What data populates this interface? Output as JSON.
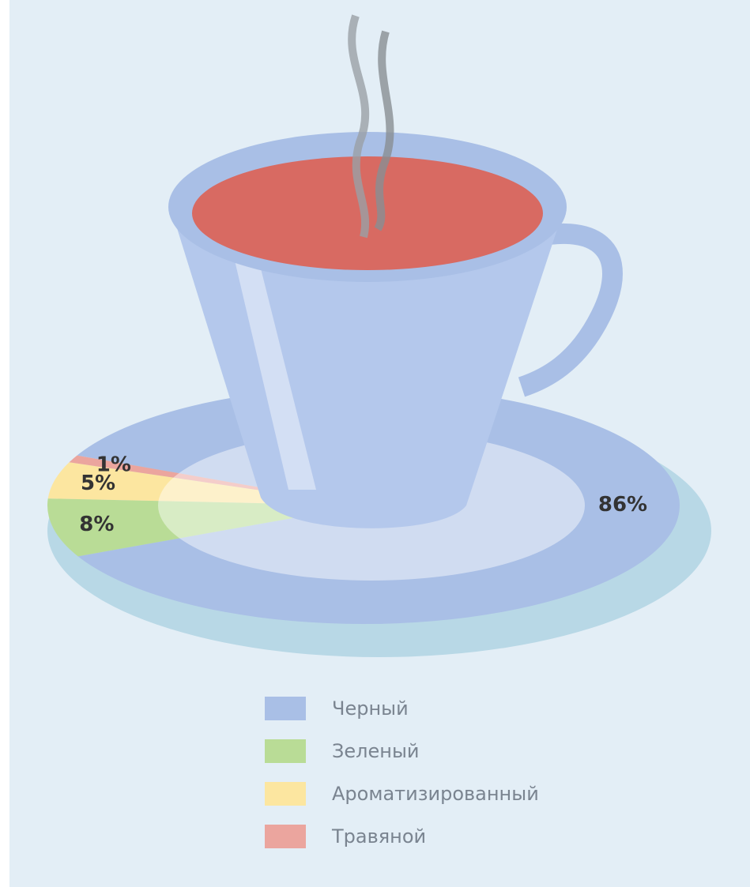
{
  "chart_data": {
    "type": "pie",
    "categories": [
      "Черный",
      "Зеленый",
      "Ароматизированный",
      "Травяной"
    ],
    "values": [
      86,
      8,
      5,
      1
    ],
    "value_labels": [
      "86%",
      "8%",
      "5%",
      "1%"
    ],
    "colors": [
      "#a9bfe6",
      "#b9dc96",
      "#fce6a0",
      "#eba59e"
    ],
    "legend": "bottom"
  }
}
